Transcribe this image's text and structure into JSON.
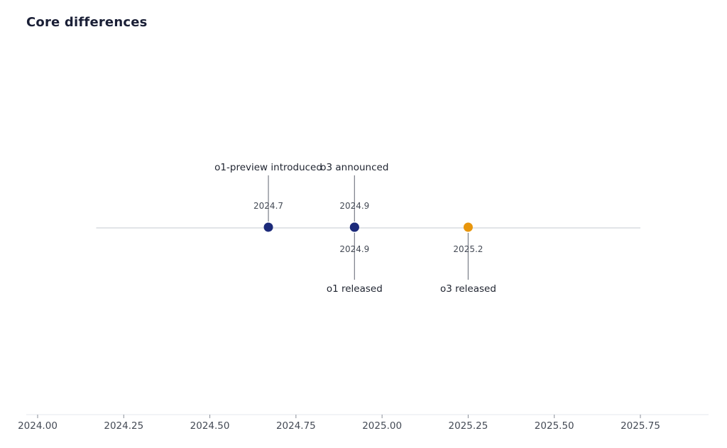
{
  "chart_data": {
    "type": "scatter",
    "title": "Core differences",
    "xlabel": "",
    "ylabel": "",
    "xlim": [
      2024.0,
      2025.75
    ],
    "x_ticks": [
      2024.0,
      2024.25,
      2024.5,
      2024.75,
      2025.0,
      2025.25,
      2025.5,
      2025.75
    ],
    "x_tick_labels": [
      "2024.00",
      "2024.25",
      "2024.50",
      "2024.75",
      "2025.00",
      "2025.25",
      "2025.50",
      "2025.75"
    ],
    "grid": false,
    "timeline_span": [
      2024.17,
      2025.75
    ],
    "events": [
      {
        "label": "o1-preview introduced",
        "x": 2024.67,
        "value_label": "2024.7",
        "side": "above",
        "color": "#1c2a7a"
      },
      {
        "label": "o1 released",
        "x": 2024.92,
        "value_label": "2024.9",
        "side": "below",
        "color": "#1c2a7a"
      },
      {
        "label": "o3 announced",
        "x": 2024.92,
        "value_label": "2024.9",
        "side": "above",
        "color": "#1c2a7a"
      },
      {
        "label": "o3 released",
        "x": 2025.25,
        "value_label": "2025.2",
        "side": "below",
        "color": "#e8960c"
      }
    ],
    "colors": {
      "primary": "#1c2a7a",
      "highlight": "#e8960c",
      "stem": "#7a7e88",
      "timeline": "#e2e4e8",
      "axis": "#e6e8ec"
    }
  }
}
